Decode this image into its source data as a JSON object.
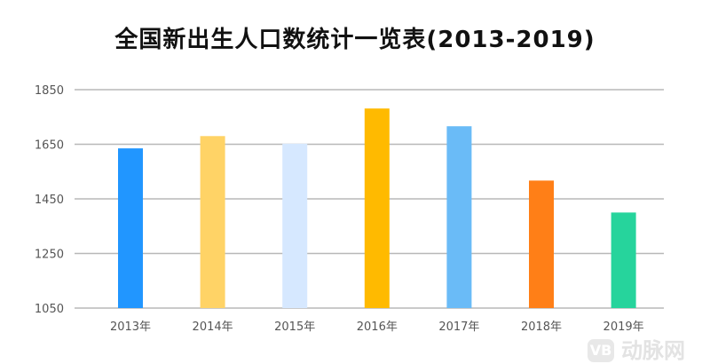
{
  "chart_data": {
    "type": "bar",
    "title": "全国新出生人口数统计一览表(2013-2019)",
    "categories": [
      "2013年",
      "2014年",
      "2015年",
      "2016年",
      "2017年",
      "2018年",
      "2019年"
    ],
    "values": [
      1635,
      1680,
      1652,
      1781,
      1716,
      1517,
      1400
    ],
    "colors": [
      "#2196FF",
      "#FFD366",
      "#D6E8FF",
      "#FFBA00",
      "#6ABBF7",
      "#FF7F17",
      "#26D49C"
    ],
    "ylim": [
      1050,
      1850
    ],
    "yticks": [
      1050,
      1250,
      1450,
      1650,
      1850
    ],
    "xlabel": "",
    "ylabel": "",
    "grid": true,
    "legend": "none"
  },
  "watermark": {
    "logo": "VB",
    "text": "动脉网"
  }
}
